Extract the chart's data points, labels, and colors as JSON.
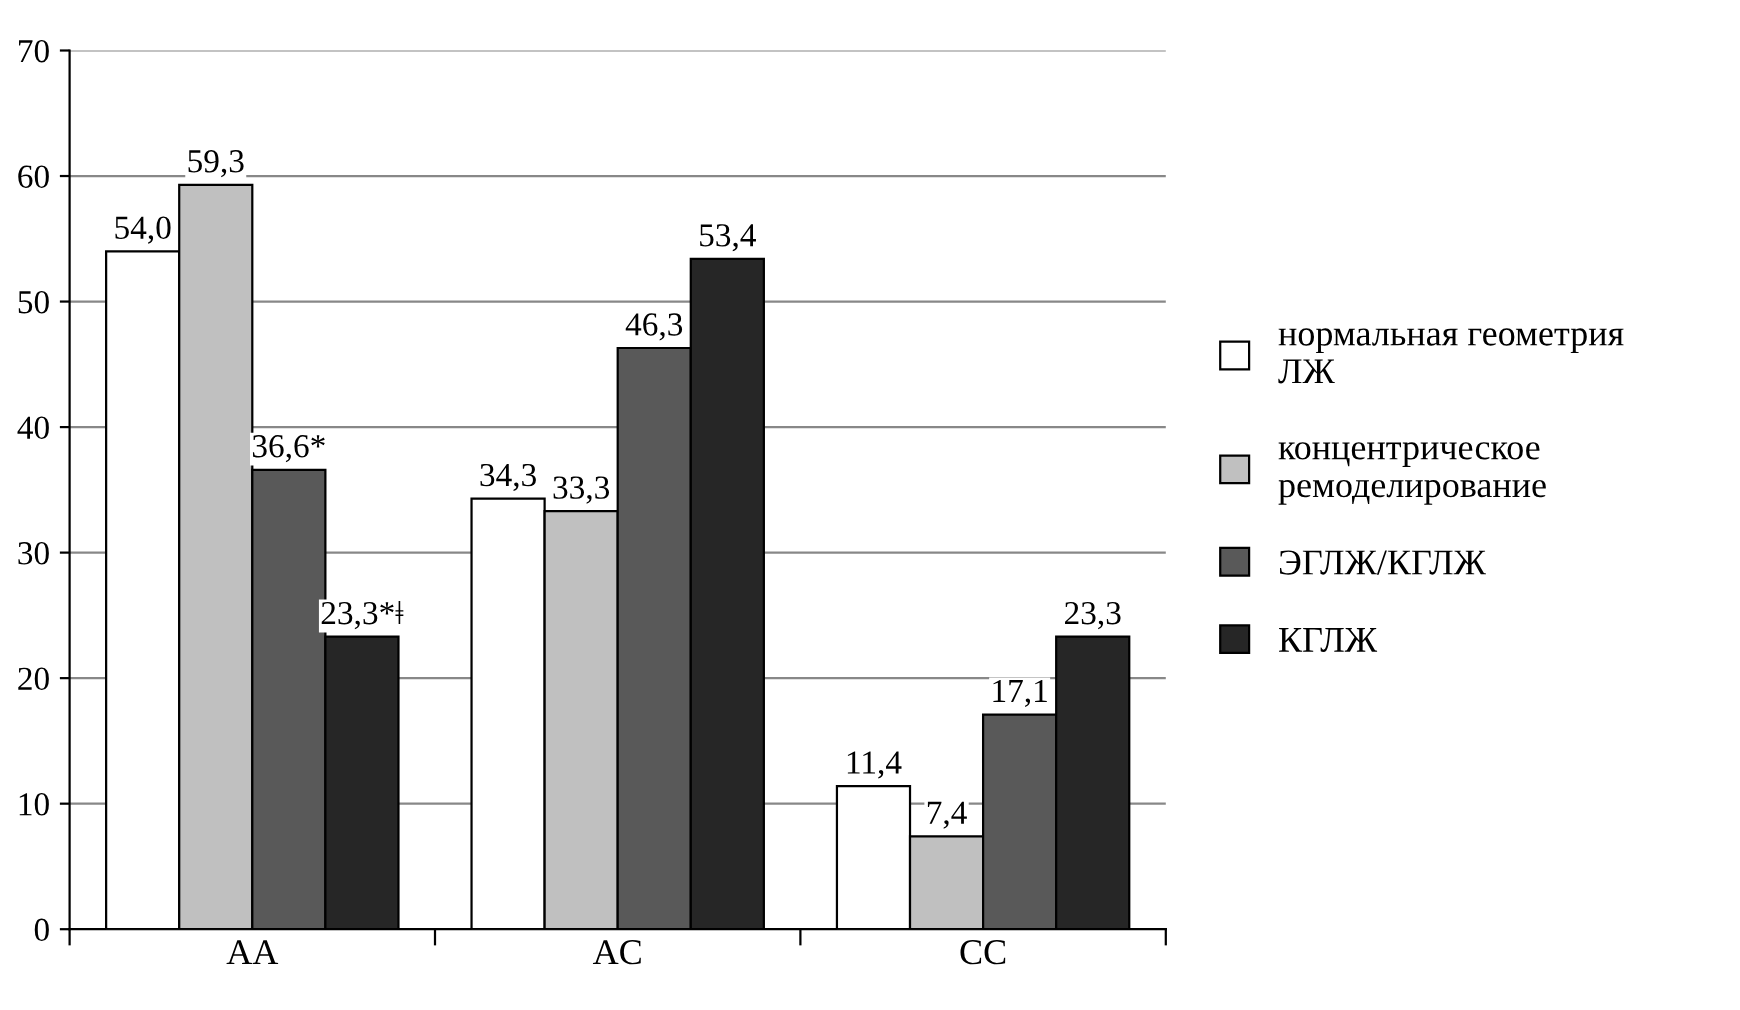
{
  "chart_data": {
    "type": "bar",
    "categories": [
      "AA",
      "AC",
      "CC"
    ],
    "series": [
      {
        "name": "нормальная геометрия ЛЖ",
        "color": "#ffffff",
        "values": [
          54.0,
          34.3,
          11.4
        ],
        "value_labels": [
          "54,0",
          "34,3",
          "11,4"
        ]
      },
      {
        "name": "концентрическое ремоделирование",
        "color": "#c0c0c0",
        "values": [
          59.3,
          33.3,
          7.4
        ],
        "value_labels": [
          "59,3",
          "33,3",
          "7,4"
        ]
      },
      {
        "name": "ЭГЛЖ/КГЛЖ",
        "color": "#595959",
        "values": [
          36.6,
          46.3,
          17.1
        ],
        "value_labels": [
          "36,6*",
          "46,3",
          "17,1"
        ]
      },
      {
        "name": "КГЛЖ",
        "color": "#262626",
        "values": [
          23.3,
          53.4,
          23.3
        ],
        "value_labels": [
          "23,3*ǂ",
          "53,4",
          "23,3"
        ]
      }
    ],
    "ylim": [
      0,
      70
    ],
    "yticks": [
      0,
      10,
      20,
      30,
      40,
      50,
      60,
      70
    ],
    "grid": "y",
    "legend": "right"
  }
}
